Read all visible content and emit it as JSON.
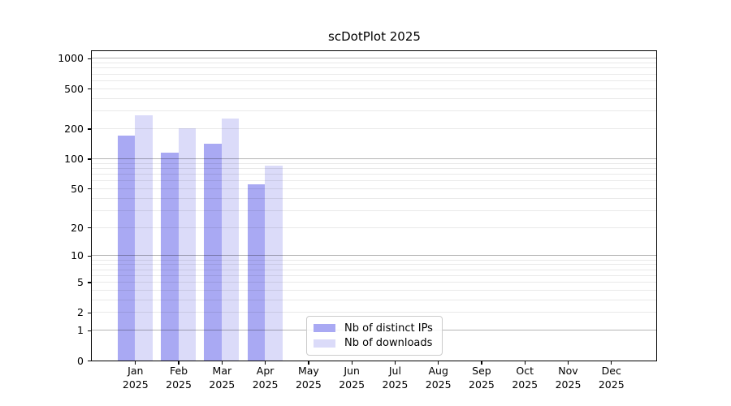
{
  "title": "scDotPlot 2025",
  "colors": {
    "ips_bar": "#a9a9f3",
    "downloads_bar": "#dbdbf9",
    "major_grid": "rgba(0,0,0,0.29)",
    "minor_grid": "rgba(0,0,0,0.085)",
    "axis": "#000000",
    "legend_border": "#cccccc"
  },
  "legend": {
    "items": [
      {
        "label": "Nb of distinct IPs"
      },
      {
        "label": "Nb of downloads"
      }
    ]
  },
  "chart_data": {
    "type": "bar",
    "title": "scDotPlot 2025",
    "categories": [
      "Jan",
      "Feb",
      "Mar",
      "Apr",
      "May",
      "Jun",
      "Jul",
      "Aug",
      "Sep",
      "Oct",
      "Nov",
      "Dec"
    ],
    "year_label": "2025",
    "series": [
      {
        "name": "Nb of distinct IPs",
        "color": "#a9a9f3",
        "values": [
          170,
          115,
          140,
          55,
          0,
          0,
          0,
          0,
          0,
          0,
          0,
          0
        ]
      },
      {
        "name": "Nb of downloads",
        "color": "#dbdbf9",
        "values": [
          270,
          200,
          250,
          85,
          0,
          0,
          0,
          0,
          0,
          0,
          0,
          0
        ]
      }
    ],
    "xlabel": "",
    "ylabel": "",
    "yscale": "log1p",
    "yticks": [
      0,
      1,
      2,
      5,
      10,
      20,
      50,
      100,
      200,
      500,
      1000
    ],
    "ylim": [
      0,
      1170
    ],
    "grid": true,
    "legend_position": "lower center"
  }
}
